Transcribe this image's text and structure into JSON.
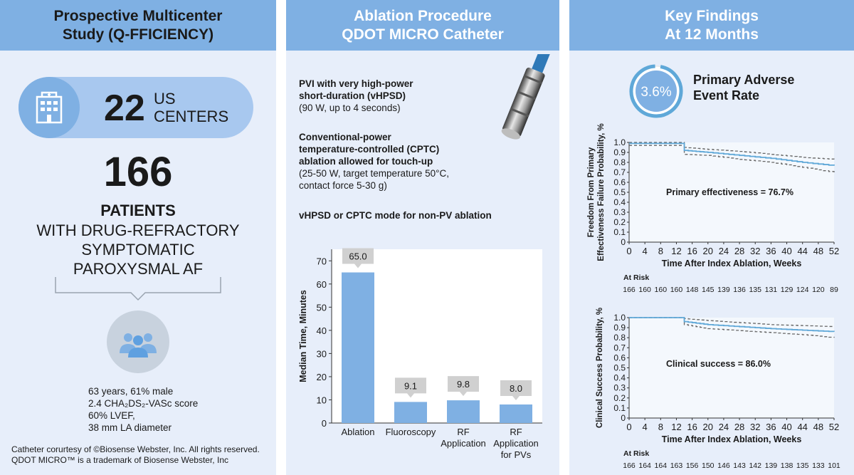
{
  "panel1": {
    "header_line1": "Prospective Multicenter",
    "header_line2": "Study (Q-FFICIENCY)",
    "centers_number": "22",
    "centers_label_line1": "US",
    "centers_label_line2": "CENTERS",
    "patients_number": "166",
    "patients_label": "PATIENTS",
    "condition_line1": "WITH DRUG-REFRACTORY",
    "condition_line2": "SYMPTOMATIC",
    "condition_line3": "PAROXYSMAL AF",
    "demo_line1": "63 years, 61% male",
    "demo_line2": "2.4 CHA₂DS₂-VASc score",
    "demo_line3": "60% LVEF,",
    "demo_line4": "38 mm LA diameter",
    "credit_line1": "Catheter corurtesy of ©Biosense Webster, Inc. All rights reserved.",
    "credit_line2": "QDOT MICRO™ is a trademark of Biosense Webster, Inc"
  },
  "panel2": {
    "header_line1": "Ablation Procedure",
    "header_line2": "QDOT MICRO Catheter",
    "pvi_bold1": "PVI with very high-power",
    "pvi_bold2": "short-duration (vHPSD)",
    "pvi_normal": "(90 W, up to 4 seconds)",
    "cptc_bold1": "Conventional-power",
    "cptc_bold2": "temperature-controlled (CPTC)",
    "cptc_bold3": "ablation allowed for touch-up",
    "cptc_normal1": "(25-50 W, target temperature 50°C,",
    "cptc_normal2": "contact force 5-30 g)",
    "nonpv_bold": "vHPSD or CPTC mode for non-PV ablation"
  },
  "panel3": {
    "header_line1": "Key Findings",
    "header_line2": "At 12 Months",
    "adverse_value": "3.6%",
    "adverse_label_line1": "Primary Adverse",
    "adverse_label_line2": "Event Rate"
  },
  "chart_data": [
    {
      "type": "bar",
      "ylabel": "Median Time, Minutes",
      "ylim": [
        0,
        75
      ],
      "yticks": [
        "0",
        "10",
        "20",
        "30",
        "40",
        "50",
        "60",
        "70"
      ],
      "categories": [
        [
          "Ablation"
        ],
        [
          "Fluoroscopy"
        ],
        [
          "RF",
          "Application"
        ],
        [
          "RF",
          "Application",
          "for PVs"
        ]
      ],
      "values": [
        65.0,
        9.1,
        9.8,
        8.0
      ],
      "value_labels": [
        "65.0",
        "9.1",
        "9.8",
        "8.0"
      ],
      "colors": {
        "bar": "#7fb0e3",
        "label_bg": "#d0d0d0"
      }
    },
    {
      "type": "line",
      "ylabel_line1": "Freedom From Primary",
      "ylabel_line2": "Effectiveness Failure Probability, %",
      "xlabel": "Time After Index Ablation, Weeks",
      "xlim": [
        0,
        52
      ],
      "ylim": [
        0,
        1.0
      ],
      "xticks": [
        "0",
        "4",
        "8",
        "12",
        "16",
        "20",
        "24",
        "28",
        "32",
        "36",
        "40",
        "44",
        "48",
        "52"
      ],
      "yticks": [
        "0",
        "0.1",
        "0.2",
        "0.3",
        "0.4",
        "0.5",
        "0.6",
        "0.7",
        "0.8",
        "0.9",
        "1.0"
      ],
      "annotation": "Primary effectiveness = 76.7%",
      "at_risk_label": "At Risk",
      "at_risk": [
        "166",
        "160",
        "160",
        "160",
        "148",
        "145",
        "139",
        "136",
        "135",
        "131",
        "129",
        "124",
        "120",
        "89"
      ],
      "estimate": [
        [
          0,
          0.99
        ],
        [
          13,
          0.99
        ],
        [
          14,
          0.92
        ],
        [
          20,
          0.9
        ],
        [
          28,
          0.87
        ],
        [
          36,
          0.84
        ],
        [
          44,
          0.8
        ],
        [
          52,
          0.767
        ]
      ],
      "ci_upper": [
        [
          0,
          1.0
        ],
        [
          13,
          1.0
        ],
        [
          14,
          0.95
        ],
        [
          20,
          0.93
        ],
        [
          28,
          0.91
        ],
        [
          36,
          0.88
        ],
        [
          44,
          0.85
        ],
        [
          52,
          0.83
        ]
      ],
      "ci_lower": [
        [
          0,
          0.97
        ],
        [
          13,
          0.97
        ],
        [
          14,
          0.88
        ],
        [
          20,
          0.87
        ],
        [
          28,
          0.83
        ],
        [
          36,
          0.8
        ],
        [
          44,
          0.75
        ],
        [
          52,
          0.7
        ]
      ],
      "colors": {
        "estimate": "#5fa8d8",
        "ci": "#666666"
      }
    },
    {
      "type": "line",
      "ylabel": "Clinical Success Probability, %",
      "xlabel": "Time After Index Ablation, Weeks",
      "xlim": [
        0,
        52
      ],
      "ylim": [
        0,
        1.0
      ],
      "xticks": [
        "0",
        "4",
        "8",
        "12",
        "16",
        "20",
        "24",
        "28",
        "32",
        "36",
        "40",
        "44",
        "48",
        "52"
      ],
      "yticks": [
        "0",
        "0.1",
        "0.2",
        "0.3",
        "0.4",
        "0.5",
        "0.6",
        "0.7",
        "0.8",
        "0.9",
        "1.0"
      ],
      "annotation": "Clinical success = 86.0%",
      "at_risk_label": "At Risk",
      "at_risk": [
        "166",
        "164",
        "164",
        "163",
        "156",
        "150",
        "146",
        "143",
        "142",
        "139",
        "138",
        "135",
        "133",
        "101"
      ],
      "estimate": [
        [
          0,
          1.0
        ],
        [
          13,
          1.0
        ],
        [
          14,
          0.96
        ],
        [
          20,
          0.93
        ],
        [
          28,
          0.91
        ],
        [
          36,
          0.89
        ],
        [
          44,
          0.875
        ],
        [
          52,
          0.86
        ]
      ],
      "ci_upper": [
        [
          0,
          1.0
        ],
        [
          13,
          1.0
        ],
        [
          14,
          0.99
        ],
        [
          20,
          0.97
        ],
        [
          28,
          0.95
        ],
        [
          36,
          0.93
        ],
        [
          44,
          0.92
        ],
        [
          52,
          0.91
        ]
      ],
      "ci_lower": [
        [
          0,
          1.0
        ],
        [
          13,
          1.0
        ],
        [
          14,
          0.93
        ],
        [
          20,
          0.89
        ],
        [
          28,
          0.87
        ],
        [
          36,
          0.85
        ],
        [
          44,
          0.83
        ],
        [
          52,
          0.8
        ]
      ],
      "colors": {
        "estimate": "#5fa8d8",
        "ci": "#666666"
      }
    }
  ]
}
